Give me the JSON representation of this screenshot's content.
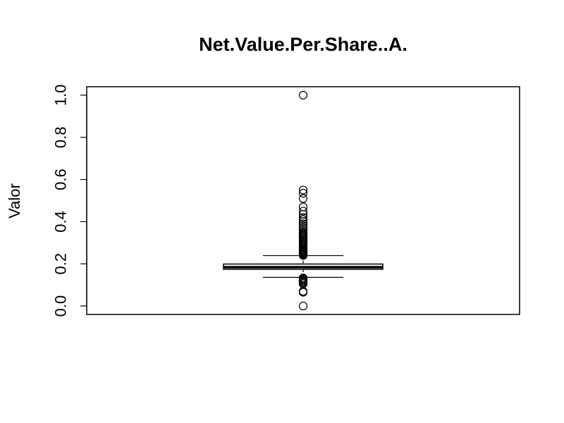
{
  "chart_data": {
    "type": "boxplot",
    "title": "Net.Value.Per.Share..A.",
    "xlabel": "",
    "ylabel": "Valor",
    "ylim": [
      -0.04,
      1.04
    ],
    "yticks": [
      0.0,
      0.2,
      0.4,
      0.6,
      0.8,
      1.0
    ],
    "ytick_labels": [
      "0.0",
      "0.2",
      "0.4",
      "0.6",
      "0.8",
      "1.0"
    ],
    "grid": false,
    "legend": "none",
    "box": {
      "q1": 0.174,
      "median": 0.184,
      "q3": 0.199,
      "whisker_low": 0.136,
      "whisker_high": 0.239
    },
    "outliers": [
      0.0,
      0.065,
      0.07,
      0.105,
      0.11,
      0.115,
      0.12,
      0.125,
      0.13,
      0.133,
      0.24,
      0.243,
      0.247,
      0.25,
      0.254,
      0.258,
      0.262,
      0.266,
      0.27,
      0.275,
      0.28,
      0.285,
      0.29,
      0.295,
      0.3,
      0.305,
      0.31,
      0.315,
      0.32,
      0.325,
      0.33,
      0.335,
      0.34,
      0.345,
      0.35,
      0.36,
      0.37,
      0.38,
      0.39,
      0.4,
      0.41,
      0.42,
      0.435,
      0.45,
      0.47,
      0.51,
      0.535,
      0.55,
      1.0
    ]
  },
  "colors": {
    "line": "#000000",
    "background": "#ffffff"
  }
}
